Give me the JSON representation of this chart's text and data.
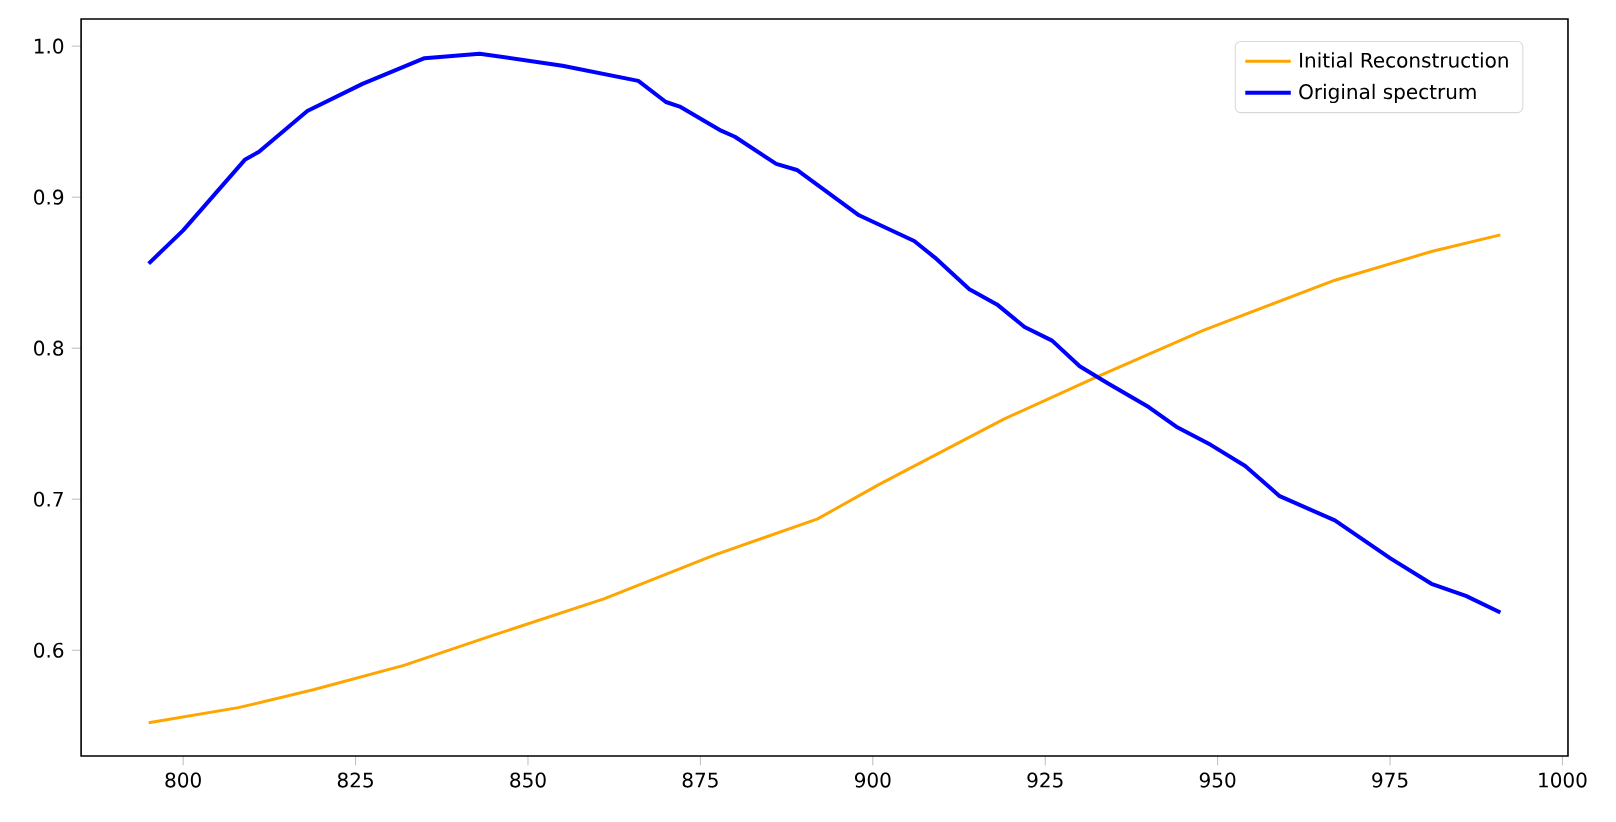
{
  "chart_data": {
    "type": "line",
    "x": [
      795,
      808,
      819,
      832,
      845,
      861,
      877,
      892,
      901,
      919,
      932,
      948,
      967,
      981,
      991
    ],
    "series": [
      {
        "name": "Initial Reconstruction",
        "color": "#ffa500",
        "values": [
          0.552,
          0.562,
          0.574,
          0.59,
          0.61,
          0.634,
          0.663,
          0.687,
          0.71,
          0.753,
          0.78,
          0.812,
          0.845,
          0.864,
          0.875
        ]
      },
      {
        "name": "Original spectrum",
        "color": "#0000ff",
        "x": [
          795,
          800,
          809,
          811,
          818,
          826,
          835,
          843,
          855,
          866,
          870,
          872,
          878,
          880,
          886,
          889,
          898,
          906,
          909,
          914,
          918,
          922,
          926,
          930,
          934,
          940,
          944,
          949,
          954,
          959,
          967,
          975,
          981,
          986,
          991
        ],
        "values": [
          0.856,
          0.878,
          0.925,
          0.93,
          0.957,
          0.975,
          0.992,
          0.995,
          0.987,
          0.977,
          0.963,
          0.96,
          0.944,
          0.94,
          0.922,
          0.918,
          0.888,
          0.871,
          0.86,
          0.839,
          0.829,
          0.814,
          0.805,
          0.788,
          0.777,
          0.761,
          0.748,
          0.736,
          0.722,
          0.702,
          0.686,
          0.661,
          0.644,
          0.636,
          0.625
        ]
      }
    ],
    "xlim": [
      785.2,
      1000.8
    ],
    "ylim": [
      0.53,
      1.018
    ],
    "xticks": [
      800,
      825,
      850,
      875,
      900,
      925,
      950,
      975,
      1000
    ],
    "yticks": [
      {
        "value": 0.6,
        "label": "0.6"
      },
      {
        "value": 0.7,
        "label": "0.7"
      },
      {
        "value": 0.8,
        "label": "0.8"
      },
      {
        "value": 0.9,
        "label": "0.9"
      },
      {
        "value": 1.0,
        "label": "1.0"
      }
    ],
    "legend": "top right",
    "grid": false,
    "marker": "none",
    "line_style": "solid"
  }
}
